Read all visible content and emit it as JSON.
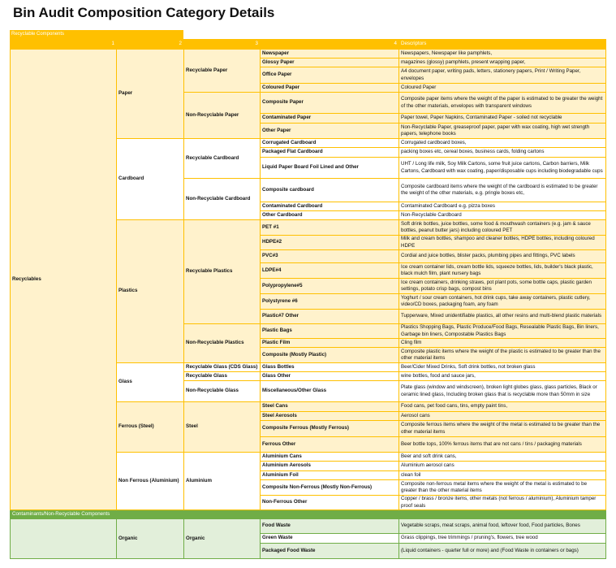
{
  "title": "Bin Audit Composition Category Details",
  "colors": {
    "recyclable_header": "#FFC000",
    "recyclable_cell": "#FFF2CC",
    "contaminant_header": "#70AD47",
    "contaminant_cell": "#E2EFDA"
  },
  "recyclable_section": {
    "label": "Recyclable Components",
    "headers": [
      "1",
      "2",
      "3",
      "4",
      "Descriptors"
    ],
    "groups": [
      {
        "name": "Recyclables",
        "subgroups": [
          {
            "name": "Paper",
            "categories": [
              {
                "name": "Recyclable Paper",
                "items": [
                  {
                    "name": "Newspaper",
                    "desc": "Newspapers, Newspaper like pamphlets,"
                  },
                  {
                    "name": "Glossy Paper",
                    "desc": "magazines (glossy) pamphlets, present wrapping paper,"
                  },
                  {
                    "name": "Office Paper",
                    "desc": "A4 document paper, writing pads, letters, stationery papers, Print / Writing Paper, envelopes"
                  },
                  {
                    "name": "Coloured Paper",
                    "desc": "Coloured Paper"
                  }
                ]
              },
              {
                "name": "Non-Recyclable Paper",
                "items": [
                  {
                    "name": "Composite Paper",
                    "desc": "Composite paper items where the weight of the paper is estimated to be greater the weight of the other materials, envelopes with transparent windows"
                  },
                  {
                    "name": "Contaminated Paper",
                    "desc": "Paper towel, Paper Napkins, Contaminated Paper - soiled not recyclable"
                  },
                  {
                    "name": "Other Paper",
                    "desc": "Non-Recyclable Paper, greaseproof paper, paper with wax coating, high wet strength papers, telephone books"
                  }
                ]
              }
            ]
          },
          {
            "name": "Cardboard",
            "categories": [
              {
                "name": "Recyclable Cardboard",
                "items": [
                  {
                    "name": "Corrugated Cardboard",
                    "desc": "Corrugated cardboard boxes,"
                  },
                  {
                    "name": "Packaged Flat Cardboard",
                    "desc": "packing boxes etc, cereal boxes, business cards, folding cartons"
                  },
                  {
                    "name": "Liquid Paper Board Foil Lined and Other",
                    "desc": "UHT / Long life milk, Soy Milk Cartons, some fruit juice cartons, Carbon barriers, Milk Cartons, Cardboard with wax coating, paper/disposable cups including biodegradable cups"
                  }
                ]
              },
              {
                "name": "Non-Recyclable Cardboard",
                "items": [
                  {
                    "name": "Composite cardboard",
                    "desc": "Composite cardboard items where the weight of the cardboard is estimated to be greater the weight of the other materials, e.g. pringle boxes etc,"
                  },
                  {
                    "name": "Contaminated Cardboard",
                    "desc": "Contaminated Cardboard e.g. pizza boxes"
                  },
                  {
                    "name": "Other Cardboard",
                    "desc": "Non-Recyclable Cardboard"
                  }
                ]
              }
            ]
          },
          {
            "name": "Plastics",
            "categories": [
              {
                "name": "Recyclable Plastics",
                "items": [
                  {
                    "name": "PET #1",
                    "desc": "Soft drink bottles, juice bottles, some food & mouthwash containers (e.g. jam & sauce bottles, peanut butter jars) including coloured PET"
                  },
                  {
                    "name": "HDPE#2",
                    "desc": "Milk and cream bottles, shampoo and cleaner bottles, HDPE bottles, including coloured HDPE"
                  },
                  {
                    "name": "PVC#3",
                    "desc": "Cordial and juice bottles, blister packs, plumbing pipes and fittings, PVC labels"
                  },
                  {
                    "name": "LDPE#4",
                    "desc": "Ice cream container lids, cream bottle lids, squeeze bottles, lids, builder's black plastic, black mulch film, plant nursery bags"
                  },
                  {
                    "name": "Polypropylene#5",
                    "desc": "Ice cream containers, drinking straws, pot plant pots, some bottle caps, plastic garden settings, potato crisp bags, compost bins"
                  },
                  {
                    "name": "Polystyrene #6",
                    "desc": "Yoghurt / sour cream containers, hot drink cups, take away containers, plastic cutlery, video/CD boxes, packaging foam, any foam"
                  },
                  {
                    "name": "Plastic#7 Other",
                    "desc": "Tupperware, Mixed unidentifiable plastics, all other resins and multi-blend plastic materials"
                  }
                ]
              },
              {
                "name": "Non-Recyclable Plastics",
                "items": [
                  {
                    "name": "Plastic Bags",
                    "desc": "Plastics Shopping Bags, Plastic Produce/Food Bags, Resealable Plastic Bags, Bin liners, Garbage bin liners, Compostable Plastics Bags"
                  },
                  {
                    "name": "Plastic Film",
                    "desc": "Cling film"
                  },
                  {
                    "name": "Composite (Mostly Plastic)",
                    "desc": "Composite plastic items where the weight of the plastic is estimated to be greater than the other material items"
                  }
                ]
              }
            ]
          },
          {
            "name": "Glass",
            "categories": [
              {
                "name": "Recyclable Glass (CDS Glass)",
                "items": [
                  {
                    "name": "Glass Bottles",
                    "desc": "Beer/Cider Mixed Drinks, Soft drink bottles,  not broken glass"
                  }
                ]
              },
              {
                "name": "Recyclable Glass",
                "items": [
                  {
                    "name": "Glass Other",
                    "desc": "wine bottles, food and sauce jars,"
                  }
                ]
              },
              {
                "name": "Non-Recyclable Glass",
                "items": [
                  {
                    "name": "Miscellaneous/Other Glass",
                    "desc": "Plate glass (window and windscreen), broken light globes glass, glass particles, Black or ceramic lined glass, Including broken glass that is recyclable more than 50mm in size"
                  }
                ]
              }
            ]
          },
          {
            "name": "Ferrous (Steel)",
            "categories": [
              {
                "name": "Steel",
                "items": [
                  {
                    "name": "Steel Cans",
                    "desc": "Food cans, pet food cans, tins, empty paint tins,"
                  },
                  {
                    "name": "Steel Aerosols",
                    "desc": "Aerosol cans"
                  },
                  {
                    "name": "Composite Ferrous (Mostly Ferrous)",
                    "desc": "Composite ferrous items where the weight of the metal is estimated to be greater than the other material items"
                  },
                  {
                    "name": "Ferrous Other",
                    "desc": "Beer bottle tops, 100% ferrous items that are not cans / tins / packaging materials"
                  }
                ]
              }
            ]
          },
          {
            "name": "Non Ferrous (Aluminium)",
            "categories": [
              {
                "name": "Aluminium",
                "items": [
                  {
                    "name": "Aluminium Cans",
                    "desc": "Beer and soft drink cans,"
                  },
                  {
                    "name": "Aluminium Aerosols",
                    "desc": "Aluminium aerosol cans"
                  },
                  {
                    "name": "Aluminium Foil",
                    "desc": "clean foil"
                  },
                  {
                    "name": "Composite Non-Ferrous (Mostly Non-Ferrous)",
                    "desc": "Composite non-ferrous metal items where the weight of the metal is estimated to be greater than the other material items"
                  },
                  {
                    "name": "Non-Ferrous Other",
                    "desc": "Copper / brass / bronze items, other metals (not ferrous / aluminium), Aluminium tamper proof seals"
                  }
                ]
              }
            ]
          }
        ]
      }
    ]
  },
  "contaminant_section": {
    "label": "Contaminants/Non-Recyclable Components",
    "groups": [
      {
        "name": "",
        "subgroups": [
          {
            "name": "Organic",
            "categories": [
              {
                "name": "Organic",
                "items": [
                  {
                    "name": "Food Waste",
                    "desc": "Vegetable scraps, meat scraps, animal food, leftover food, Food particles, Bones"
                  },
                  {
                    "name": "Green Waste",
                    "desc": "Grass clippings, tree trimmings / pruning's, flowers, tree wood"
                  },
                  {
                    "name": "Packaged Food Waste",
                    "desc": "(Liquid containers - quarter full or more) and (Food Waste in containers or bags)"
                  }
                ]
              }
            ]
          }
        ]
      }
    ]
  }
}
